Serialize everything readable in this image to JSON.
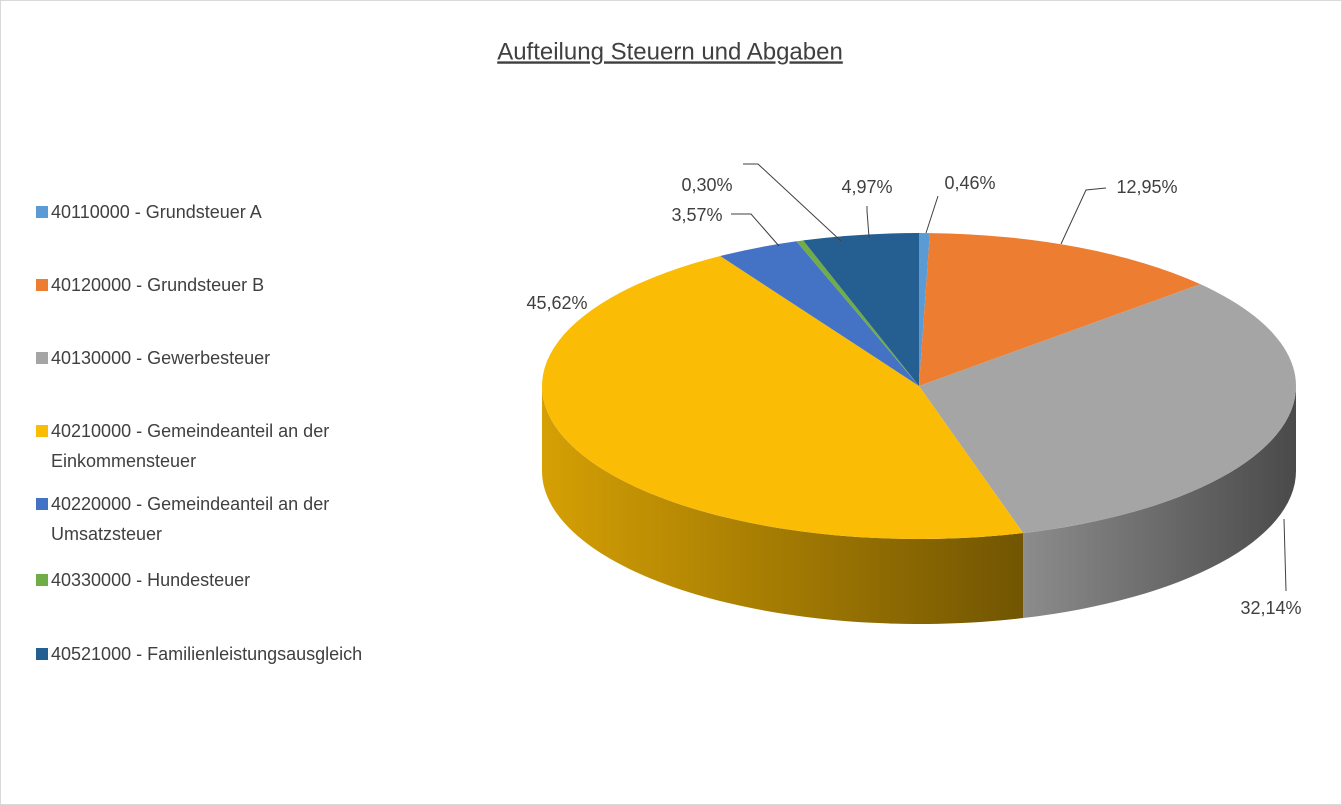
{
  "chart_data": {
    "type": "pie3d",
    "title": "Aufteilung Steuern und Abgaben",
    "categories": [
      "40110000 - Grundsteuer A",
      "40120000 - Grundsteuer B",
      "40130000 - Gewerbesteuer",
      "40210000 - Gemeindeanteil an der Einkommensteuer",
      "40220000 - Gemeindeanteil an der Umsatzsteuer",
      "40330000 - Hundesteuer",
      "40521000 - Familienleistungsausgleich"
    ],
    "values": [
      0.46,
      12.95,
      32.14,
      45.62,
      3.57,
      0.3,
      4.97
    ],
    "value_labels": [
      "0,46%",
      "12,95%",
      "32,14%",
      "45,62%",
      "3,57%",
      "0,30%",
      "4,97%"
    ],
    "colors": [
      "#5b9bd5",
      "#ed7d31",
      "#a5a5a5",
      "#fbbc05",
      "#4472c4",
      "#70ad47",
      "#255e91"
    ],
    "legend": "left"
  }
}
